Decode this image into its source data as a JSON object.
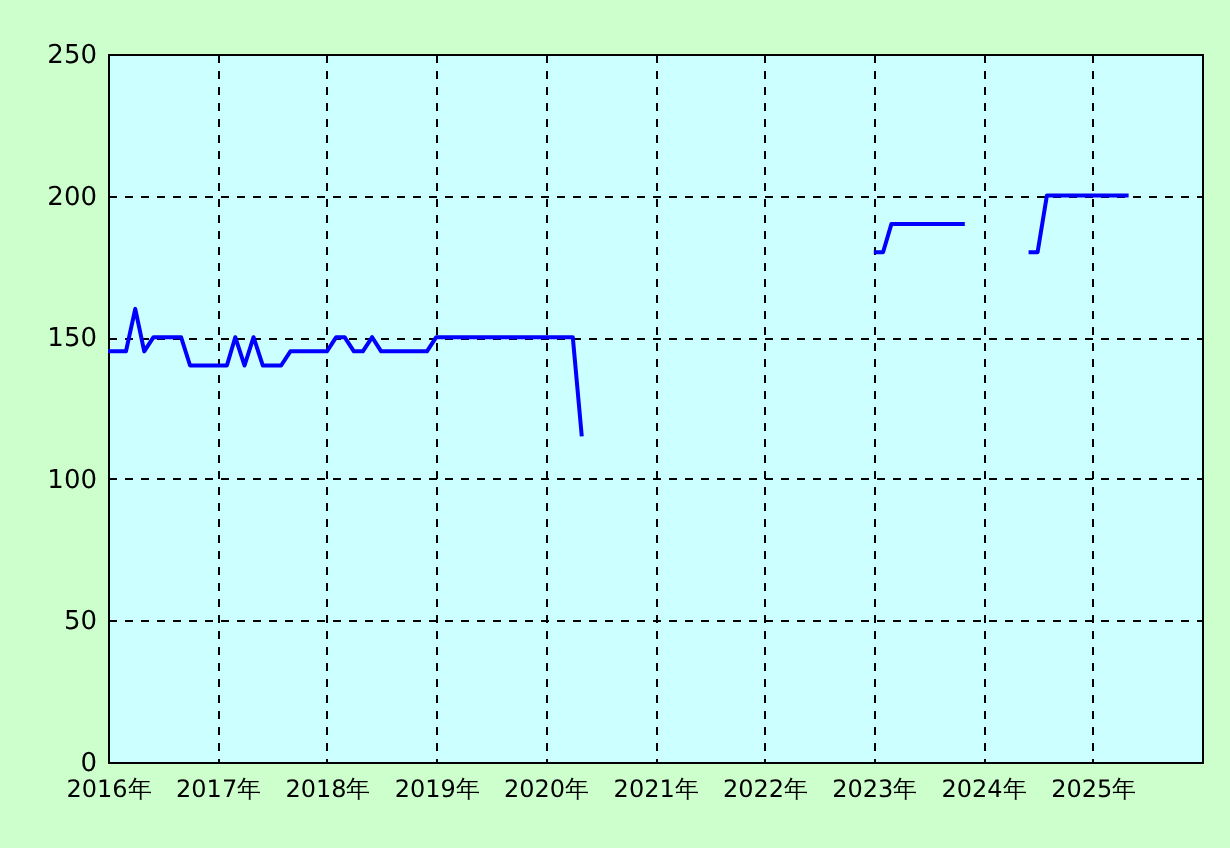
{
  "chart_data": {
    "type": "line",
    "x": [
      "2016-01",
      "2016-03",
      "2016-04",
      "2016-05",
      "2016-06",
      "2016-09",
      "2016-10",
      "2017-02",
      "2017-03",
      "2017-04",
      "2017-05",
      "2017-06",
      "2017-08",
      "2017-09",
      "2018-01",
      "2018-02",
      "2018-03",
      "2018-04",
      "2018-05",
      "2018-06",
      "2018-07",
      "2018-12",
      "2019-01",
      "2020-04",
      "2020-05",
      "2020-06",
      "2023-01",
      "2023-02",
      "2023-03",
      "2023-11",
      "2023-12",
      "2024-06",
      "2024-07",
      "2024-08",
      "2025-05"
    ],
    "series": [
      {
        "color": "#0000ff",
        "values": [
          145,
          145,
          160,
          145,
          150,
          150,
          140,
          140,
          150,
          140,
          150,
          140,
          140,
          145,
          145,
          150,
          150,
          145,
          145,
          150,
          145,
          145,
          150,
          150,
          115,
          null,
          180,
          180,
          190,
          190,
          null,
          180,
          180,
          200,
          200
        ]
      }
    ],
    "xlim": [
      "2016-01",
      "2026-01"
    ],
    "xticks": [
      {
        "value": "2016-01",
        "label": "2016年"
      },
      {
        "value": "2017-01",
        "label": "2017年"
      },
      {
        "value": "2018-01",
        "label": "2018年"
      },
      {
        "value": "2019-01",
        "label": "2019年"
      },
      {
        "value": "2020-01",
        "label": "2020年"
      },
      {
        "value": "2021-01",
        "label": "2021年"
      },
      {
        "value": "2022-01",
        "label": "2022年"
      },
      {
        "value": "2023-01",
        "label": "2023年"
      },
      {
        "value": "2024-01",
        "label": "2024年"
      },
      {
        "value": "2025-01",
        "label": "2025年"
      }
    ],
    "ylim": [
      0,
      250
    ],
    "yticks": [
      0,
      50,
      100,
      150,
      200,
      250
    ],
    "grid": true,
    "marker": "none",
    "line_style": "solid"
  }
}
